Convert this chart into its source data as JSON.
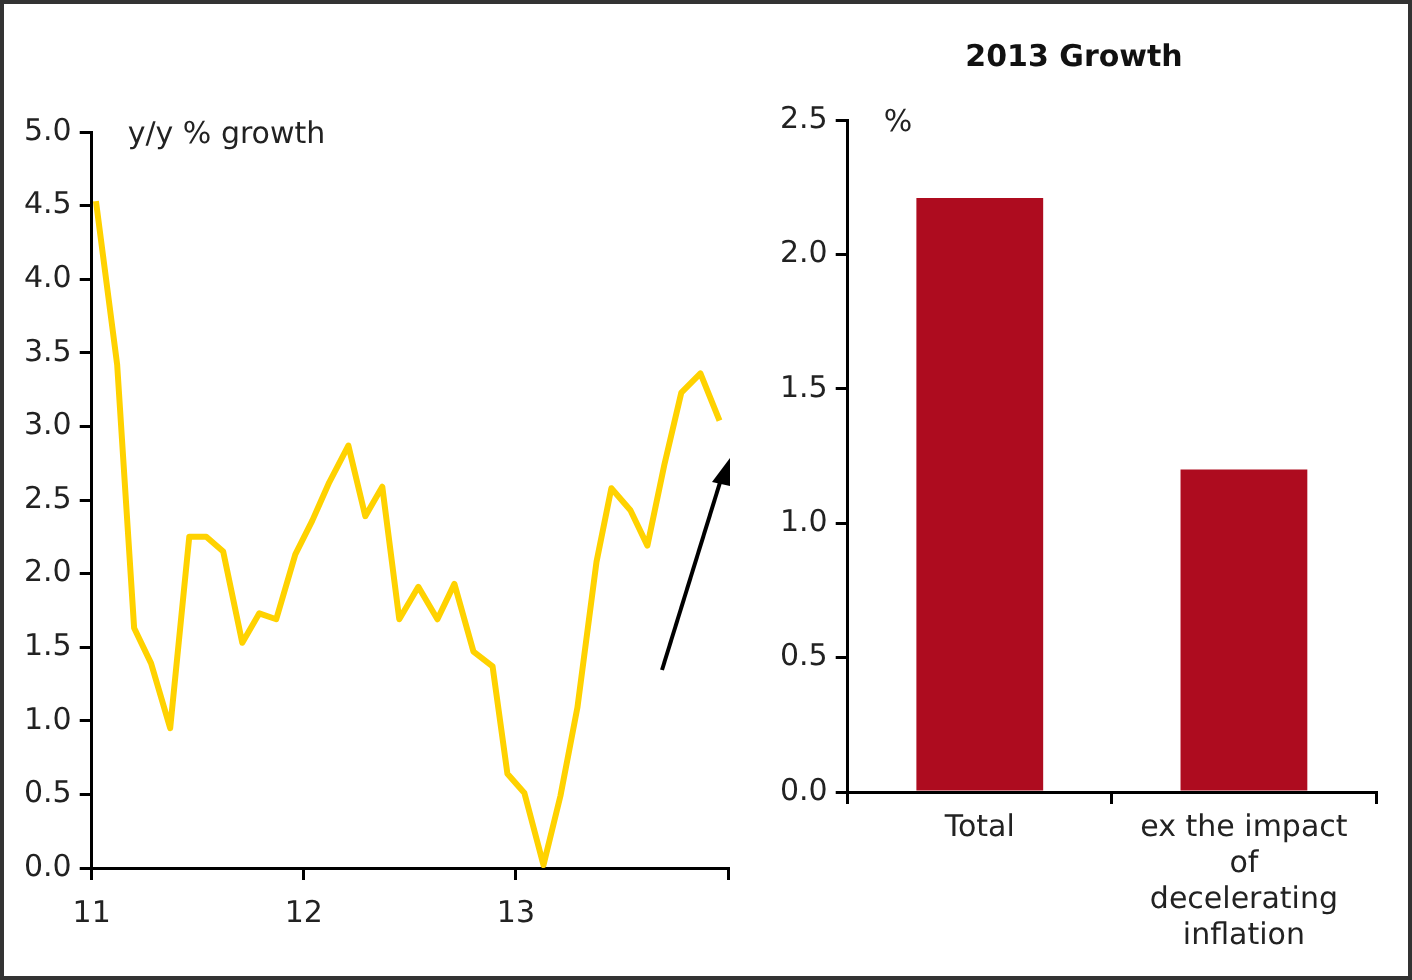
{
  "chart_data": [
    {
      "type": "line",
      "ylabel": "y/y % growth",
      "x": [
        11.02,
        11.12,
        11.2,
        11.28,
        11.37,
        11.46,
        11.54,
        11.62,
        11.71,
        11.79,
        11.87,
        11.96,
        12.04,
        12.12,
        12.21,
        12.29,
        12.37,
        12.45,
        12.54,
        12.63,
        12.71,
        12.8,
        12.89,
        12.96,
        13.04,
        13.13,
        13.21,
        13.29,
        13.38,
        13.45,
        13.54,
        13.62,
        13.7,
        13.78,
        13.87,
        13.96
      ],
      "series": [
        {
          "color": "#ffd200",
          "values": [
            4.53,
            3.42,
            1.63,
            1.39,
            0.95,
            2.25,
            2.25,
            2.15,
            1.53,
            1.73,
            1.69,
            2.13,
            2.36,
            2.62,
            2.87,
            2.39,
            2.59,
            1.69,
            1.91,
            1.69,
            1.93,
            1.47,
            1.37,
            0.64,
            0.51,
            0.02,
            0.49,
            1.09,
            2.08,
            2.58,
            2.43,
            2.19,
            2.74,
            3.23,
            3.36,
            3.04
          ]
        }
      ],
      "xlim": [
        11,
        14
      ],
      "xticks": [
        11,
        12,
        13,
        {
          "value": 14,
          "label": null
        }
      ],
      "ylim": [
        0,
        5
      ],
      "yticks": [
        {
          "value": 0,
          "label": "0.0"
        },
        0.5,
        {
          "value": 1,
          "label": "1.0"
        },
        1.5,
        {
          "value": 2,
          "label": "2.0"
        },
        2.5,
        {
          "value": 3,
          "label": "3.0"
        },
        3.5,
        {
          "value": 4,
          "label": "4.0"
        },
        4.5,
        {
          "value": 5,
          "label": "5.0"
        }
      ],
      "grid": false,
      "legend": false,
      "marker": "none",
      "line_style": "solid"
    },
    {
      "type": "bar",
      "title": "2013 Growth",
      "ylabel": "%",
      "categories": [
        "Total",
        "ex the impact of decelerating inflation"
      ],
      "values": [
        2.21,
        1.2
      ],
      "color": "#ae0c1f",
      "ylim": [
        0,
        2.5
      ],
      "yticks": [
        {
          "value": 0,
          "label": "0.0"
        },
        0.5,
        {
          "value": 1,
          "label": "1.0"
        },
        1.5,
        {
          "value": 2,
          "label": "2.0"
        },
        2.5
      ],
      "grid": false,
      "legend": false
    }
  ]
}
